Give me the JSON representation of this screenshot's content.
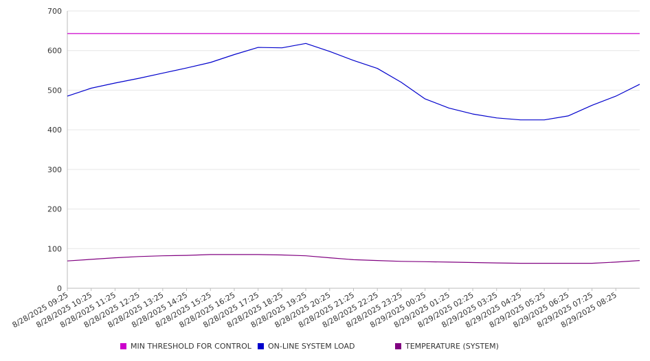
{
  "chart_data": {
    "type": "line",
    "title": "",
    "xlabel": "",
    "ylabel": "",
    "ylim": [
      0,
      700
    ],
    "yticks": [
      0,
      100,
      200,
      300,
      400,
      500,
      600,
      700
    ],
    "xticks": [
      "8/28/2025 09:25",
      "8/28/2025 10:25",
      "8/28/2025 11:25",
      "8/28/2025 12:25",
      "8/28/2025 13:25",
      "8/28/2025 14:25",
      "8/28/2025 15:25",
      "8/28/2025 16:25",
      "8/28/2025 17:25",
      "8/28/2025 18:25",
      "8/28/2025 19:25",
      "8/28/2025 20:25",
      "8/28/2025 21:25",
      "8/28/2025 22:25",
      "8/28/2025 23:25",
      "8/29/2025 00:25",
      "8/29/2025 01:25",
      "8/29/2025 02:25",
      "8/29/2025 03:25",
      "8/29/2025 04:25",
      "8/29/2025 05:25",
      "8/29/2025 06:25",
      "8/29/2025 07:25",
      "8/29/2025 08:25"
    ],
    "grid": true,
    "legend_position": "bottom",
    "series": [
      {
        "name": "MIN THRESHOLD FOR CONTROL",
        "color": "#cc00cc",
        "values": [
          643,
          643,
          643,
          643,
          643,
          643,
          643,
          643,
          643,
          643,
          643,
          643,
          643,
          643,
          643,
          643,
          643,
          643,
          643,
          643,
          643,
          643,
          643,
          643,
          643
        ]
      },
      {
        "name": "ON-LINE SYSTEM LOAD",
        "color": "#0000cc",
        "values": [
          485,
          505,
          518,
          530,
          543,
          556,
          570,
          590,
          608,
          607,
          618,
          598,
          575,
          555,
          520,
          478,
          455,
          440,
          430,
          425,
          425,
          435,
          462,
          485,
          515
        ]
      },
      {
        "name": "TEMPERATURE (SYSTEM)",
        "color": "#800080",
        "values": [
          69,
          73,
          77,
          80,
          82,
          83,
          85,
          85,
          85,
          84,
          82,
          77,
          72,
          70,
          68,
          67,
          66,
          65,
          64,
          63,
          63,
          63,
          63,
          66,
          70
        ]
      }
    ]
  }
}
